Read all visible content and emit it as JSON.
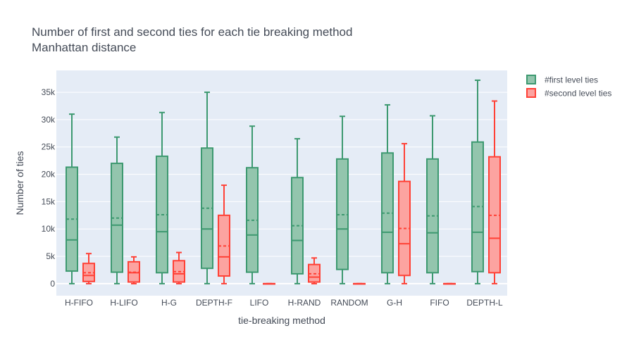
{
  "chart_data": {
    "type": "box",
    "title": "Number of first and second ties for each tie breaking method",
    "subtitle": "Manhattan distance",
    "xlabel": "tie-breaking method",
    "ylabel": "Number of ties",
    "categories": [
      "H-FIFO",
      "H-LIFO",
      "H-G",
      "DEPTH-F",
      "LIFO",
      "H-RAND",
      "RANDOM",
      "G-H",
      "FIFO",
      "DEPTH-L"
    ],
    "ylim": [
      -2200,
      39000
    ],
    "yticks": [
      0,
      5000,
      10000,
      15000,
      20000,
      25000,
      30000,
      35000
    ],
    "ytick_labels": [
      "0",
      "5k",
      "10k",
      "15k",
      "20k",
      "25k",
      "30k",
      "35k"
    ],
    "grid": true,
    "legend_position": "top-right",
    "series": [
      {
        "name": "#first level ties",
        "color": "#3d9970",
        "fill": "#93c5ad",
        "boxes": [
          {
            "min": 0,
            "q1": 2300,
            "median": 8000,
            "q3": 21300,
            "max": 31000,
            "mean": 11800
          },
          {
            "min": 0,
            "q1": 2100,
            "median": 10700,
            "q3": 22000,
            "max": 26800,
            "mean": 12000
          },
          {
            "min": 0,
            "q1": 2000,
            "median": 9500,
            "q3": 23300,
            "max": 31300,
            "mean": 12600
          },
          {
            "min": 0,
            "q1": 2800,
            "median": 10000,
            "q3": 24800,
            "max": 35000,
            "mean": 13800
          },
          {
            "min": 0,
            "q1": 2100,
            "median": 8900,
            "q3": 21200,
            "max": 28800,
            "mean": 11600
          },
          {
            "min": 0,
            "q1": 1800,
            "median": 7900,
            "q3": 19400,
            "max": 26500,
            "mean": 10600
          },
          {
            "min": 0,
            "q1": 2600,
            "median": 10000,
            "q3": 22800,
            "max": 30600,
            "mean": 12600
          },
          {
            "min": 0,
            "q1": 2000,
            "median": 9400,
            "q3": 23900,
            "max": 32700,
            "mean": 12900
          },
          {
            "min": 0,
            "q1": 2000,
            "median": 9300,
            "q3": 22800,
            "max": 30700,
            "mean": 12400
          },
          {
            "min": 0,
            "q1": 2200,
            "median": 9400,
            "q3": 25900,
            "max": 37200,
            "mean": 14100
          }
        ]
      },
      {
        "name": "#second level ties",
        "color": "#ff4136",
        "fill": "#fca3a0",
        "boxes": [
          {
            "min": 0,
            "q1": 400,
            "median": 1500,
            "q3": 3700,
            "max": 5500,
            "mean": 2000
          },
          {
            "min": 0,
            "q1": 300,
            "median": 2000,
            "q3": 4000,
            "max": 4900,
            "mean": 2100
          },
          {
            "min": 0,
            "q1": 300,
            "median": 1800,
            "q3": 4200,
            "max": 5700,
            "mean": 2200
          },
          {
            "min": 0,
            "q1": 1400,
            "median": 4900,
            "q3": 12500,
            "max": 18000,
            "mean": 6900
          },
          {
            "min": 0,
            "q1": 0,
            "median": 0,
            "q3": 0,
            "max": 0,
            "mean": 0
          },
          {
            "min": 0,
            "q1": 300,
            "median": 1200,
            "q3": 3500,
            "max": 4700,
            "mean": 1800
          },
          {
            "min": 0,
            "q1": 0,
            "median": 0,
            "q3": 0,
            "max": 0,
            "mean": 0
          },
          {
            "min": 0,
            "q1": 1500,
            "median": 7300,
            "q3": 18700,
            "max": 25600,
            "mean": 10100
          },
          {
            "min": 0,
            "q1": 0,
            "median": 0,
            "q3": 0,
            "max": 0,
            "mean": 0
          },
          {
            "min": 0,
            "q1": 2000,
            "median": 8300,
            "q3": 23200,
            "max": 33400,
            "mean": 12500
          }
        ]
      }
    ]
  }
}
